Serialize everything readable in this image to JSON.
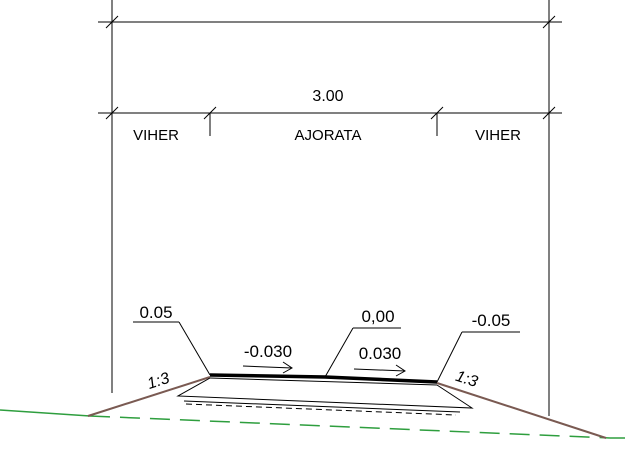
{
  "dimensions": {
    "total_width": "3.00",
    "segments": [
      {
        "label": "VIHER"
      },
      {
        "label": "AJORATA"
      },
      {
        "label": "VIHER"
      }
    ]
  },
  "elevations": {
    "left_edge": "0.05",
    "center": "0,00",
    "right_edge": "-0.05"
  },
  "crossfall": {
    "left": "-0.030",
    "right": "0.030"
  },
  "slopes": {
    "left": "1:3",
    "right": "1:3"
  },
  "colors": {
    "ground_line": "#2e9e3e",
    "embankment": "#7a5a52",
    "lines": "#000000"
  }
}
